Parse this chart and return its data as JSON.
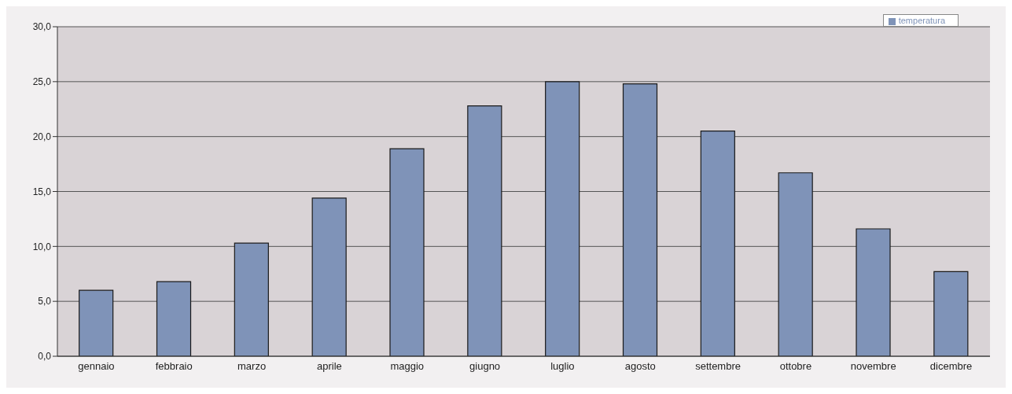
{
  "chart_data": {
    "type": "bar",
    "categories": [
      "gennaio",
      "febbraio",
      "marzo",
      "aprile",
      "maggio",
      "giugno",
      "luglio",
      "agosto",
      "settembre",
      "ottobre",
      "novembre",
      "dicembre"
    ],
    "series": [
      {
        "name": "temperatura",
        "color": "#7f93b8",
        "values": [
          6.0,
          6.8,
          10.3,
          14.4,
          18.9,
          22.8,
          25.0,
          24.8,
          20.5,
          16.7,
          11.6,
          7.7
        ]
      }
    ],
    "ylim": [
      0,
      30
    ],
    "yticks": [
      {
        "value": 0,
        "label": "0,0"
      },
      {
        "value": 5,
        "label": "5,0"
      },
      {
        "value": 10,
        "label": "10,0"
      },
      {
        "value": 15,
        "label": "15,0"
      },
      {
        "value": 20,
        "label": "20,0"
      },
      {
        "value": 25,
        "label": "25,0"
      },
      {
        "value": 30,
        "label": "30,0"
      }
    ],
    "grid": "y",
    "legend": "top right"
  }
}
